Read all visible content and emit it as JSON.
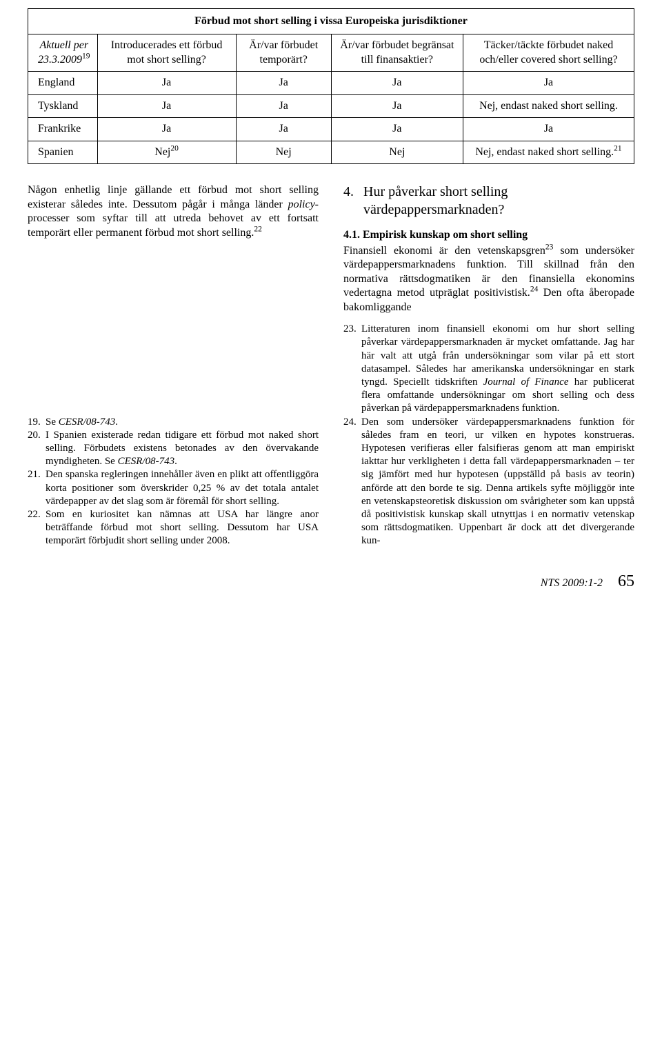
{
  "table": {
    "title": "Förbud mot short selling i vissa Europeiska jurisdiktioner",
    "header": {
      "col1_line1": "Aktuell per",
      "col1_line2": "23.3.2009",
      "col1_sup": "19",
      "col2": "Introducerades ett förbud mot short selling?",
      "col3": "Är/var förbudet temporärt?",
      "col4": "Är/var förbudet begränsat till finansaktier?",
      "col5": "Täcker/täckte för­budet naked och/eller covered short selling?"
    },
    "rows": [
      {
        "c1": "England",
        "c2": "Ja",
        "c3": "Ja",
        "c4": "Ja",
        "c5": "Ja",
        "c2sup": "",
        "c5sup": ""
      },
      {
        "c1": "Tyskland",
        "c2": "Ja",
        "c3": "Ja",
        "c4": "Ja",
        "c5": "Nej, endast naked short selling.",
        "c2sup": "",
        "c5sup": ""
      },
      {
        "c1": "Frankrike",
        "c2": "Ja",
        "c3": "Ja",
        "c4": "Ja",
        "c5": "Ja",
        "c2sup": "",
        "c5sup": ""
      },
      {
        "c1": "Spanien",
        "c2": "Nej",
        "c3": "Nej",
        "c4": "Nej",
        "c5": "Nej, endast naked short selling.",
        "c2sup": "20",
        "c5sup": "21"
      }
    ]
  },
  "body": {
    "left_p1a": "Någon enhetlig linje gällande ett förbud mot short selling existerar således inte. Des­sutom pågår i många länder ",
    "left_p1_italic": "policy",
    "left_p1b": "-proces­ser som syftar till att utreda behovet av ett fortsatt temporärt eller permanent förbud mot short selling.",
    "left_p1_sup": "22",
    "right_heading_num": "4.",
    "right_heading": "Hur påverkar short selling värdepappersmarknaden?",
    "right_subhead": "4.1.  Empirisk kunskap om short selling",
    "right_p1a": "Finansiell ekonomi är den vetenskapsgren",
    "right_p1_sup1": "23",
    "right_p1b": " som undersöker värdepappersmarknadens funktion. Till skillnad från den normativa rättsdogmatiken är den finansiella ekono­mins vedertagna metod utpräglat positivis­tisk.",
    "right_p1_sup2": "24",
    "right_p1c": " Den ofta åberopade bakomliggande"
  },
  "footnotes": {
    "left": [
      {
        "num": "19.",
        "pre": "Se ",
        "it": "CESR/08-743",
        "post": "."
      },
      {
        "num": "20.",
        "pre": "I Spanien existerade redan tidigare ett förbud mot naked short selling. Förbudets existens be­tonades av den övervakande myndigheten. Se ",
        "it": "CESR/08-743",
        "post": "."
      },
      {
        "num": "21.",
        "pre": "Den spanska regleringen innehåller även en plikt att offentliggöra korta positioner som överskrider 0,25 % av det totala antalet värde­papper av det slag som är föremål för short sel­ling.",
        "it": "",
        "post": ""
      },
      {
        "num": "22.",
        "pre": "Som en kuriositet kan nämnas att USA har längre anor beträffande förbud mot short sel­ling. Dessutom har USA temporärt förbjudit short selling under 2008.",
        "it": "",
        "post": ""
      }
    ],
    "right": [
      {
        "num": "23.",
        "pre": "Litteraturen inom finansiell ekonomi om hur short selling påverkar värdepappersmarkna­den är mycket omfattande. Jag har här valt att utgå från undersökningar som vilar på ett stort datasampel. Således har amerikanska under­sökningar en stark tyngd. Speciellt tidskriften ",
        "it": "Journal of Finance",
        "post": " har publicerat flera omfat­tande undersökningar om short selling och dess påverkan på värdepappersmarknadens funktion."
      },
      {
        "num": "24.",
        "pre": "Den som undersöker värdepappersmarkna­dens funktion för således fram en teori, ur vilken en hypotes konstrueras. Hypotesen ve­rifieras eller falsifieras genom att man empi­riskt iakttar hur verkligheten i detta fall vär­depappersmarknaden – ter sig jämfört med hur hypotesen (uppställd på basis av teorin) anförde att den borde te sig. Denna artikels syfte möjliggör inte en vetenskapsteoretisk diskussion om svårigheter som kan uppstå då positivistisk kunskap skall utnyttjas i en nor­mativ vetenskap som rättsdogmatiken. Up­penbart är dock att det divergerande kun-",
        "it": "",
        "post": ""
      }
    ]
  },
  "footer": {
    "journal": "NTS 2009:1-2",
    "page": "65"
  }
}
